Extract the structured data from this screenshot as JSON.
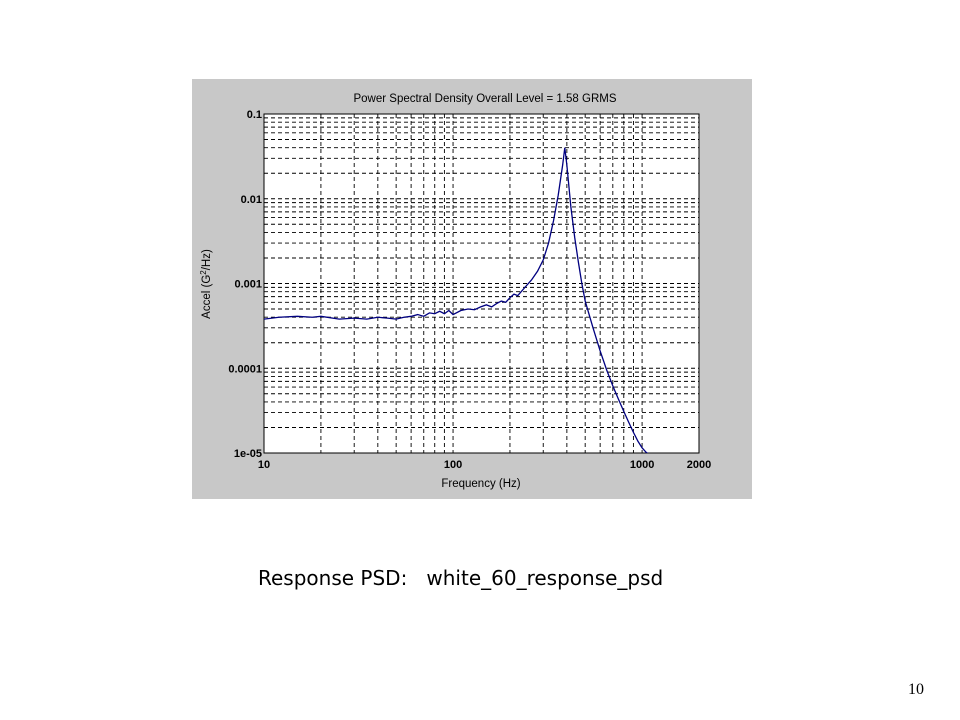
{
  "slide": {
    "caption_label": "Response PSD:",
    "caption_value": "white_60_response_psd",
    "page_number": "10"
  },
  "colors": {
    "panel_background": "#c8c8c8",
    "plot_background": "#ffffff",
    "series_line": "#000080",
    "grid": "#000000"
  },
  "chart_data": {
    "type": "line",
    "title": "Power Spectral Density  Overall Level =    1.58 GRMS",
    "xlabel": "Frequency (Hz)",
    "ylabel": "Accel (G²/Hz)",
    "x_scale": "log",
    "y_scale": "log",
    "xlim": [
      10,
      2000
    ],
    "ylim": [
      1e-05,
      0.1
    ],
    "x_ticks": [
      10,
      100,
      1000,
      2000
    ],
    "x_tick_labels": [
      "10",
      "100",
      "1000",
      "2000"
    ],
    "y_ticks": [
      1e-05,
      0.0001,
      0.001,
      0.01,
      0.1
    ],
    "y_tick_labels": [
      "1e-05",
      "0.0001",
      "0.001",
      "0.01",
      "0.1"
    ],
    "grid": true,
    "series": [
      {
        "x": [
          10,
          12,
          15,
          18,
          20,
          25,
          30,
          35,
          40,
          45,
          50,
          55,
          60,
          65,
          70,
          75,
          80,
          85,
          90,
          95,
          100,
          110,
          120,
          130,
          140,
          150,
          160,
          170,
          180,
          190,
          200,
          210,
          220,
          240,
          260,
          280,
          300,
          320,
          340,
          360,
          380,
          390,
          400,
          410,
          420,
          440,
          460,
          480,
          500,
          550,
          600,
          650,
          700,
          750,
          800,
          850,
          900,
          950,
          1000,
          1050,
          1100
        ],
        "y": [
          0.00038,
          0.0004,
          0.00041,
          0.0004,
          0.00041,
          0.00038,
          0.00039,
          0.00038,
          0.0004,
          0.00039,
          0.00038,
          0.0004,
          0.00041,
          0.00043,
          0.00041,
          0.00045,
          0.00044,
          0.00047,
          0.00044,
          0.00048,
          0.00043,
          0.00048,
          0.0005,
          0.00049,
          0.00053,
          0.00056,
          0.00053,
          0.00058,
          0.00062,
          0.0006,
          0.00068,
          0.00075,
          0.00072,
          0.0009,
          0.0011,
          0.0014,
          0.0019,
          0.003,
          0.0055,
          0.011,
          0.025,
          0.04,
          0.025,
          0.014,
          0.008,
          0.0035,
          0.0018,
          0.001,
          0.00062,
          0.0003,
          0.00016,
          9.5e-05,
          6.2e-05,
          4.3e-05,
          3.1e-05,
          2.3e-05,
          1.75e-05,
          1.38e-05,
          1.15e-05,
          1.02e-05,
          9.5e-06
        ]
      }
    ]
  }
}
